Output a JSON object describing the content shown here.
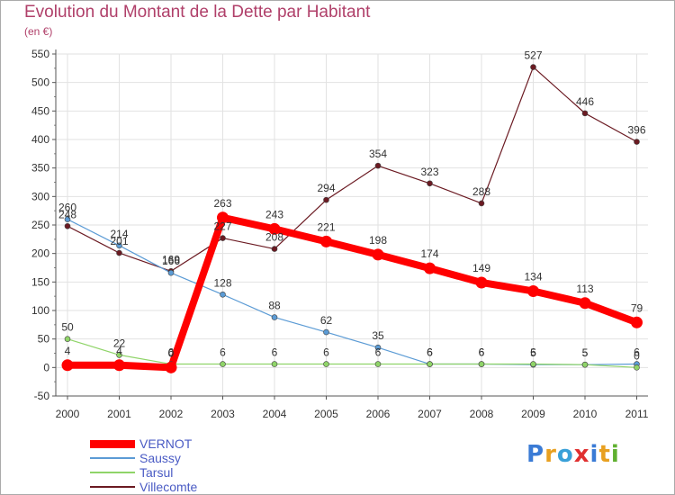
{
  "chart_data": {
    "type": "line",
    "title": "Evolution du Montant de la Dette par Habitant",
    "subtitle": "(en €)",
    "xlabel": "",
    "ylabel": "",
    "ylim": [
      -50,
      550
    ],
    "yticks": [
      -50,
      0,
      50,
      100,
      150,
      200,
      250,
      300,
      350,
      400,
      450,
      500,
      550
    ],
    "grid": true,
    "legend_position": "bottom-left",
    "categories": [
      "2000",
      "2001",
      "2002",
      "2003",
      "2004",
      "2005",
      "2006",
      "2007",
      "2008",
      "2009",
      "2010",
      "2011"
    ],
    "series": [
      {
        "name": "Villecomte",
        "color": "#6b1a22",
        "values": [
          248,
          201,
          169,
          227,
          208,
          294,
          354,
          323,
          288,
          527,
          446,
          396
        ]
      },
      {
        "name": "Saussy",
        "color": "#5b9bd5",
        "values": [
          260,
          214,
          166,
          128,
          88,
          62,
          35,
          6,
          6,
          5,
          5,
          6
        ]
      },
      {
        "name": "Tarsul",
        "color": "#8fd468",
        "values": [
          50,
          22,
          6,
          6,
          6,
          6,
          6,
          6,
          6,
          6,
          5,
          0
        ]
      },
      {
        "name": "VERNOT",
        "color": "#ff0000",
        "values": [
          4,
          4,
          0,
          263,
          243,
          221,
          198,
          174,
          149,
          134,
          113,
          79
        ]
      }
    ]
  },
  "legend_order": [
    "VERNOT",
    "Saussy",
    "Tarsul",
    "Villecomte"
  ],
  "logo": {
    "text": "Proxiti",
    "colors": [
      "#3a7bd5",
      "#e8a020",
      "#39a0d8",
      "#e03030",
      "#3a7bd5",
      "#e8a020",
      "#60b030"
    ]
  }
}
